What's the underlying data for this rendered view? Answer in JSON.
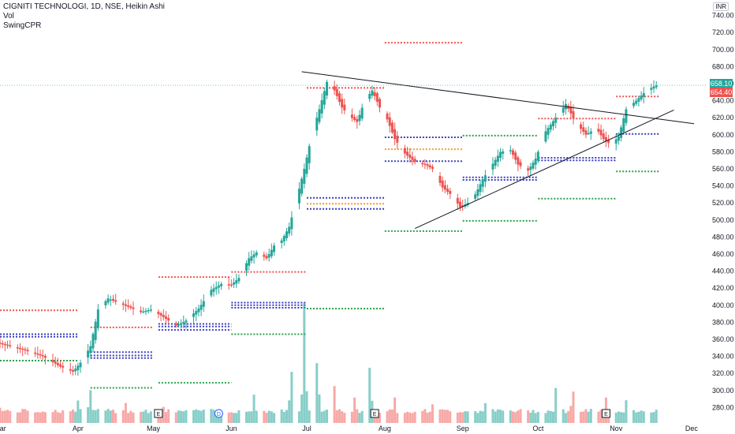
{
  "header": {
    "symbol_line": "CIGNITI TECHNOLOGI, 1D, NSE, Heikin Ashi",
    "indicator_1": "Vol",
    "indicator_2": "SwingCPR"
  },
  "currency": "INR",
  "price_tags": {
    "last": "658.10",
    "prev": "654.40",
    "last_color": "#26a69a",
    "prev_color": "#ef5350"
  },
  "event_markers": [
    {
      "label": "E",
      "date": "2021-05-03"
    },
    {
      "label": "D",
      "date": "2021-05-27"
    },
    {
      "label": "E",
      "date": "2021-07-28"
    },
    {
      "label": "E",
      "date": "2021-10-28"
    }
  ],
  "chart_data": {
    "type": "candlestick",
    "style": "Heikin Ashi",
    "interval": "1D",
    "x_range": [
      "2021-03-01",
      "2021-12-07"
    ],
    "ylim": [
      260,
      750
    ],
    "y_ticks": [
      280,
      300,
      320,
      340,
      360,
      380,
      400,
      420,
      440,
      460,
      480,
      500,
      520,
      540,
      560,
      580,
      600,
      620,
      640,
      660,
      680,
      700,
      720,
      740
    ],
    "x_ticks": [
      {
        "label": "Mar",
        "date": "2021-03-01"
      },
      {
        "label": "Apr",
        "date": "2021-04-01"
      },
      {
        "label": "May",
        "date": "2021-05-01"
      },
      {
        "label": "Jun",
        "date": "2021-06-01"
      },
      {
        "label": "Jul",
        "date": "2021-07-01"
      },
      {
        "label": "Aug",
        "date": "2021-08-01"
      },
      {
        "label": "Sep",
        "date": "2021-09-01"
      },
      {
        "label": "Oct",
        "date": "2021-10-01"
      },
      {
        "label": "Nov",
        "date": "2021-11-01"
      },
      {
        "label": "Dec",
        "date": "2021-12-01"
      }
    ],
    "price_path": [
      [
        "2021-03-01",
        355
      ],
      [
        "2021-03-10",
        348
      ],
      [
        "2021-03-18",
        340
      ],
      [
        "2021-03-25",
        328
      ],
      [
        "2021-03-30",
        322
      ],
      [
        "2021-04-03",
        336
      ],
      [
        "2021-04-06",
        352
      ],
      [
        "2021-04-09",
        395
      ],
      [
        "2021-04-13",
        408
      ],
      [
        "2021-04-16",
        404
      ],
      [
        "2021-04-21",
        398
      ],
      [
        "2021-04-26",
        392
      ],
      [
        "2021-04-30",
        395
      ],
      [
        "2021-05-05",
        386
      ],
      [
        "2021-05-10",
        376
      ],
      [
        "2021-05-14",
        382
      ],
      [
        "2021-05-19",
        396
      ],
      [
        "2021-05-24",
        418
      ],
      [
        "2021-05-28",
        425
      ],
      [
        "2021-06-01",
        424
      ],
      [
        "2021-06-04",
        432
      ],
      [
        "2021-06-08",
        455
      ],
      [
        "2021-06-11",
        462
      ],
      [
        "2021-06-15",
        455
      ],
      [
        "2021-06-18",
        470
      ],
      [
        "2021-06-21",
        476
      ],
      [
        "2021-06-24",
        492
      ],
      [
        "2021-06-27",
        525
      ],
      [
        "2021-06-30",
        560
      ],
      [
        "2021-07-03",
        600
      ],
      [
        "2021-07-06",
        630
      ],
      [
        "2021-07-09",
        662
      ],
      [
        "2021-07-12",
        652
      ],
      [
        "2021-07-15",
        632
      ],
      [
        "2021-07-18",
        622
      ],
      [
        "2021-07-21",
        615
      ],
      [
        "2021-07-24",
        640
      ],
      [
        "2021-07-27",
        652
      ],
      [
        "2021-07-30",
        632
      ],
      [
        "2021-08-02",
        618
      ],
      [
        "2021-08-05",
        595
      ],
      [
        "2021-08-09",
        578
      ],
      [
        "2021-08-13",
        568
      ],
      [
        "2021-08-17",
        565
      ],
      [
        "2021-08-20",
        560
      ],
      [
        "2021-08-24",
        538
      ],
      [
        "2021-08-28",
        528
      ],
      [
        "2021-08-31",
        515
      ],
      [
        "2021-09-03",
        520
      ],
      [
        "2021-09-06",
        530
      ],
      [
        "2021-09-09",
        548
      ],
      [
        "2021-09-13",
        566
      ],
      [
        "2021-09-16",
        580
      ],
      [
        "2021-09-20",
        582
      ],
      [
        "2021-09-23",
        565
      ],
      [
        "2021-09-27",
        558
      ],
      [
        "2021-09-30",
        572
      ],
      [
        "2021-10-04",
        604
      ],
      [
        "2021-10-08",
        620
      ],
      [
        "2021-10-12",
        636
      ],
      [
        "2021-10-16",
        614
      ],
      [
        "2021-10-20",
        600
      ],
      [
        "2021-10-24",
        608
      ],
      [
        "2021-10-27",
        595
      ],
      [
        "2021-10-30",
        588
      ],
      [
        "2021-11-02",
        598
      ],
      [
        "2021-11-05",
        630
      ],
      [
        "2021-11-09",
        640
      ],
      [
        "2021-11-13",
        652
      ],
      [
        "2021-11-17",
        658
      ]
    ],
    "trendlines": [
      {
        "name": "upper",
        "from": [
          "2021-06-29",
          674
        ],
        "to": [
          "2021-12-02",
          613
        ]
      },
      {
        "name": "lower",
        "from": [
          "2021-08-13",
          490
        ],
        "to": [
          "2021-11-24",
          629
        ]
      }
    ],
    "cpr_levels": [
      {
        "color": "#ef5350",
        "value": 394,
        "from": "2021-03-01",
        "to": "2021-04-01"
      },
      {
        "color": "#3d3dc2",
        "value": 366,
        "from": "2021-03-01",
        "to": "2021-04-01"
      },
      {
        "color": "#3d3dc2",
        "value": 363,
        "from": "2021-03-01",
        "to": "2021-04-01"
      },
      {
        "color": "#26a34a",
        "value": 335,
        "from": "2021-03-01",
        "to": "2021-04-01"
      },
      {
        "color": "#ef5350",
        "value": 374,
        "from": "2021-04-06",
        "to": "2021-05-01"
      },
      {
        "color": "#3d3dc2",
        "value": 345,
        "from": "2021-04-06",
        "to": "2021-05-01"
      },
      {
        "color": "#3d3dc2",
        "value": 341,
        "from": "2021-04-06",
        "to": "2021-05-01"
      },
      {
        "color": "#3d3dc2",
        "value": 338,
        "from": "2021-04-06",
        "to": "2021-05-01"
      },
      {
        "color": "#26a34a",
        "value": 303,
        "from": "2021-04-06",
        "to": "2021-05-01"
      },
      {
        "color": "#ef5350",
        "value": 433,
        "from": "2021-05-03",
        "to": "2021-06-01"
      },
      {
        "color": "#3d3dc2",
        "value": 378,
        "from": "2021-05-03",
        "to": "2021-06-01"
      },
      {
        "color": "#3d3dc2",
        "value": 375,
        "from": "2021-05-03",
        "to": "2021-06-01"
      },
      {
        "color": "#3d3dc2",
        "value": 371,
        "from": "2021-05-03",
        "to": "2021-06-01"
      },
      {
        "color": "#26a34a",
        "value": 309,
        "from": "2021-05-03",
        "to": "2021-06-01"
      },
      {
        "color": "#ef5350",
        "value": 439,
        "from": "2021-06-01",
        "to": "2021-07-01"
      },
      {
        "color": "#3d3dc2",
        "value": 403,
        "from": "2021-06-01",
        "to": "2021-07-01"
      },
      {
        "color": "#3d3dc2",
        "value": 400,
        "from": "2021-06-01",
        "to": "2021-07-01"
      },
      {
        "color": "#3d3dc2",
        "value": 397,
        "from": "2021-06-01",
        "to": "2021-07-01"
      },
      {
        "color": "#26a34a",
        "value": 366,
        "from": "2021-06-01",
        "to": "2021-07-01"
      },
      {
        "color": "#ef5350",
        "value": 655,
        "from": "2021-07-01",
        "to": "2021-08-01"
      },
      {
        "color": "#3d3dc2",
        "value": 526,
        "from": "2021-07-01",
        "to": "2021-08-01"
      },
      {
        "color": "#f59f2e",
        "value": 519,
        "from": "2021-07-01",
        "to": "2021-08-01"
      },
      {
        "color": "#3d3dc2",
        "value": 513,
        "from": "2021-07-01",
        "to": "2021-08-01"
      },
      {
        "color": "#26a34a",
        "value": 396,
        "from": "2021-07-01",
        "to": "2021-08-01"
      },
      {
        "color": "#ef5350",
        "value": 708,
        "from": "2021-08-01",
        "to": "2021-09-01"
      },
      {
        "color": "#3d3dc2",
        "value": 597,
        "from": "2021-08-01",
        "to": "2021-09-01"
      },
      {
        "color": "#f59f2e",
        "value": 583,
        "from": "2021-08-01",
        "to": "2021-09-01"
      },
      {
        "color": "#3d3dc2",
        "value": 569,
        "from": "2021-08-01",
        "to": "2021-09-01"
      },
      {
        "color": "#26a34a",
        "value": 487,
        "from": "2021-08-01",
        "to": "2021-09-01"
      },
      {
        "color": "#26a34a",
        "value": 599,
        "from": "2021-09-01",
        "to": "2021-10-01"
      },
      {
        "color": "#3d3dc2",
        "value": 550,
        "from": "2021-09-01",
        "to": "2021-10-01"
      },
      {
        "color": "#3d3dc2",
        "value": 547,
        "from": "2021-09-01",
        "to": "2021-10-01"
      },
      {
        "color": "#26a34a",
        "value": 499,
        "from": "2021-09-01",
        "to": "2021-10-01"
      },
      {
        "color": "#ef5350",
        "value": 619,
        "from": "2021-10-01",
        "to": "2021-11-01"
      },
      {
        "color": "#3d3dc2",
        "value": 573,
        "from": "2021-10-01",
        "to": "2021-11-01"
      },
      {
        "color": "#3d3dc2",
        "value": 570,
        "from": "2021-10-01",
        "to": "2021-11-01"
      },
      {
        "color": "#26a34a",
        "value": 525,
        "from": "2021-10-01",
        "to": "2021-11-01"
      },
      {
        "color": "#ef5350",
        "value": 645,
        "from": "2021-11-01",
        "to": "2021-11-18"
      },
      {
        "color": "#3d3dc2",
        "value": 601,
        "from": "2021-11-01",
        "to": "2021-11-18"
      },
      {
        "color": "#26a34a",
        "value": 557,
        "from": "2021-11-01",
        "to": "2021-11-18"
      }
    ],
    "volume_peaks": [
      [
        "2021-03-01",
        0.15
      ],
      [
        "2021-03-20",
        0.12
      ],
      [
        "2021-04-01",
        0.25
      ],
      [
        "2021-04-06",
        0.3
      ],
      [
        "2021-04-20",
        0.2
      ],
      [
        "2021-05-05",
        0.1
      ],
      [
        "2021-05-25",
        0.1
      ],
      [
        "2021-06-10",
        0.25
      ],
      [
        "2021-06-25",
        0.55
      ],
      [
        "2021-06-30",
        1.0
      ],
      [
        "2021-07-05",
        0.7
      ],
      [
        "2021-07-12",
        0.35
      ],
      [
        "2021-07-20",
        0.25
      ],
      [
        "2021-07-26",
        0.55
      ],
      [
        "2021-08-05",
        0.2
      ],
      [
        "2021-08-20",
        0.2
      ],
      [
        "2021-09-10",
        0.22
      ],
      [
        "2021-09-25",
        0.18
      ],
      [
        "2021-10-08",
        0.3
      ],
      [
        "2021-10-15",
        0.35
      ],
      [
        "2021-10-28",
        0.2
      ],
      [
        "2021-11-05",
        0.2
      ],
      [
        "2021-11-17",
        0.12
      ]
    ]
  }
}
